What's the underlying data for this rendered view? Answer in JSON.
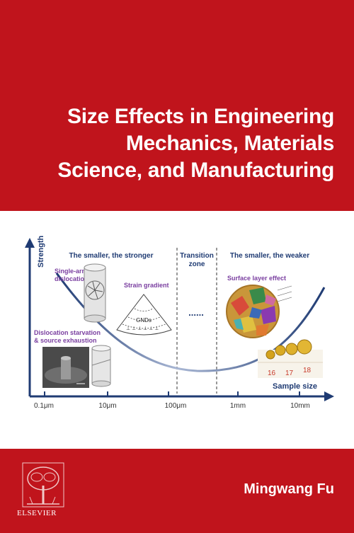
{
  "cover": {
    "title_lines": [
      "Size Effects in Engineering",
      "Mechanics, Materials",
      "Science, and Manufacturing"
    ],
    "author": "Mingwang Fu",
    "publisher": "ELSEVIER"
  },
  "figure": {
    "ylabel": "Strength",
    "xlabel": "Sample size",
    "regions": {
      "left": "The smaller, the stronger",
      "middle_line1": "Transition",
      "middle_line2": "zone",
      "right": "The smaller, the weaker",
      "dots": "......"
    },
    "annotations": {
      "single_arm_1": "Single-arm",
      "single_arm_2": "dislocation",
      "strain_gradient": "Strain gradient",
      "starvation_1": "Dislocation starvation",
      "starvation_2": "& source exhaustion",
      "surface_layer": "Surface layer effect",
      "gnd": "GNDs"
    },
    "ticks": [
      "0.1μm",
      "10μm",
      "100μm",
      "1mm",
      "10mm"
    ],
    "ruler": [
      "16",
      "17",
      "18"
    ]
  },
  "colors": {
    "background": "#c0141c",
    "accent_blue": "#1f3b73",
    "label_purple": "#7a3fa0"
  }
}
